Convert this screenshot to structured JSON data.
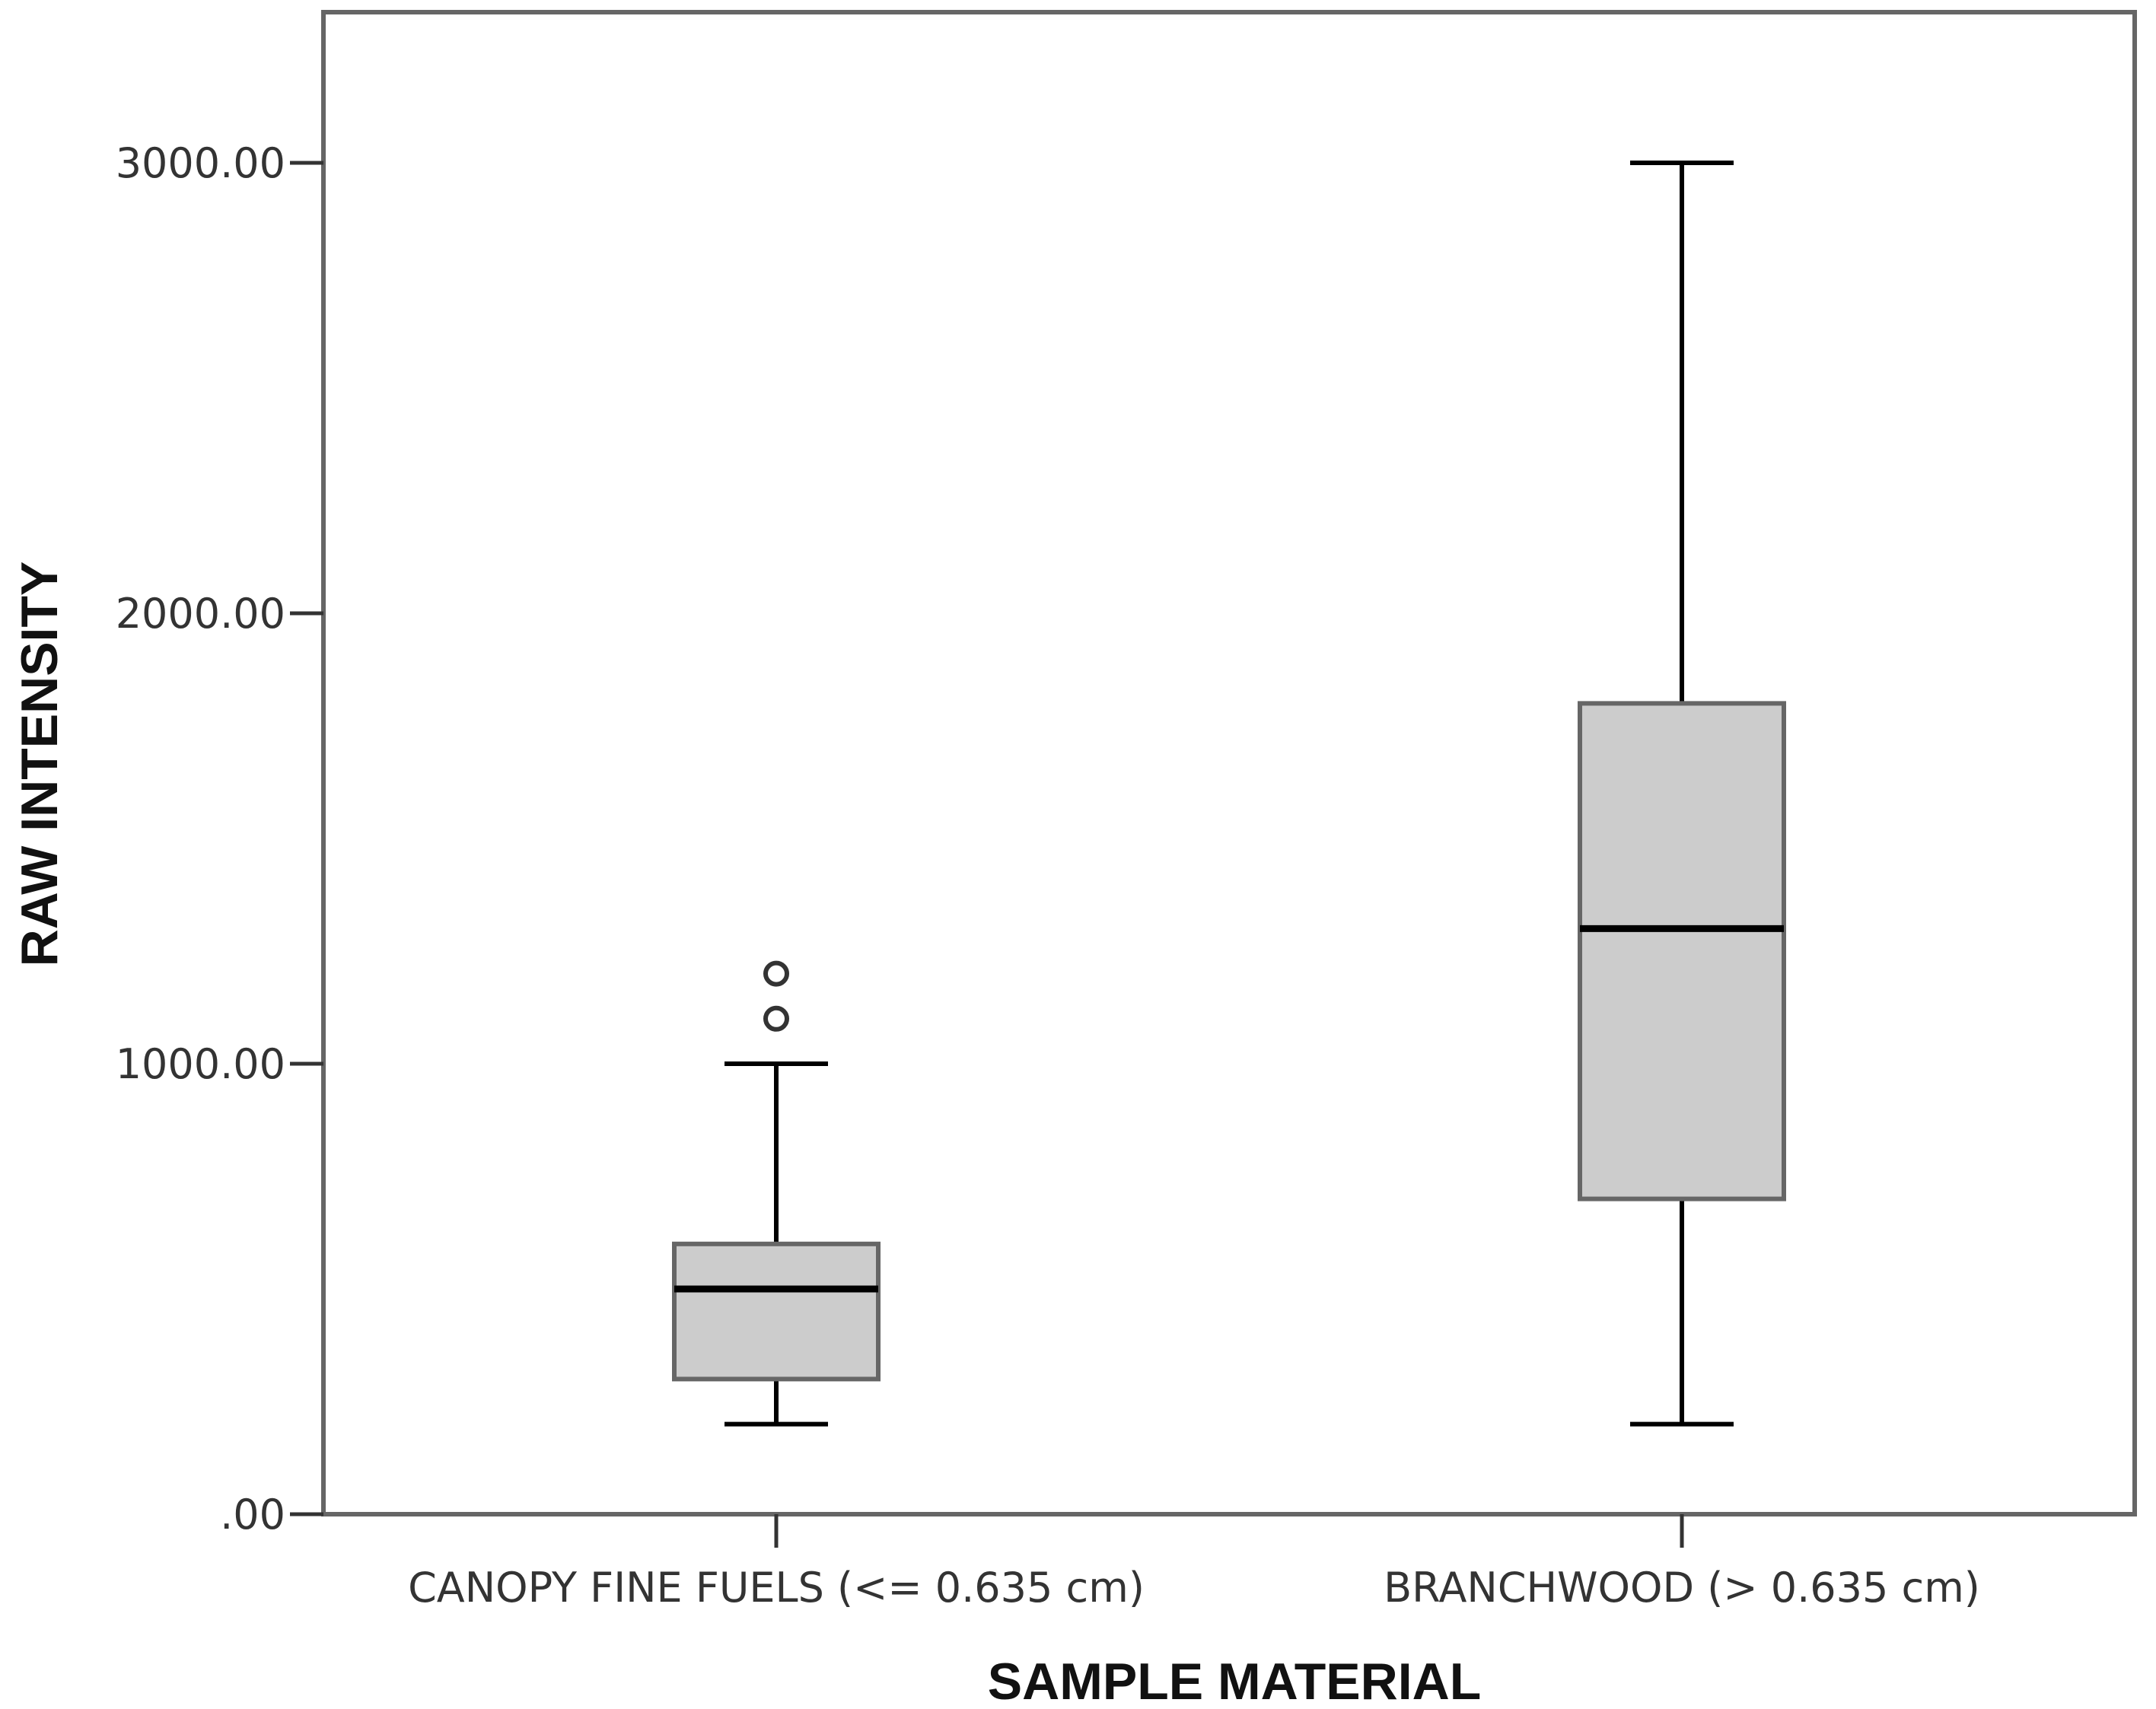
{
  "chart_data": {
    "type": "box",
    "xlabel": "SAMPLE MATERIAL",
    "ylabel": "RAW INTENSITY",
    "ylim": [
      0,
      3300
    ],
    "yticks": [
      0,
      1000,
      2000,
      3000
    ],
    "ytick_labels": [
      ".00",
      "1000.00",
      "2000.00",
      "3000.00"
    ],
    "grid": false,
    "colors": {
      "box_fill": "#cccccc",
      "box_stroke": "#666666",
      "line": "#000000",
      "frame": "#666666"
    },
    "series": [
      {
        "category": "CANOPY FINE FUELS (<= 0.635 cm)",
        "whisker_low": 200,
        "q1": 300,
        "median": 500,
        "q3": 600,
        "whisker_high": 1000,
        "outliers": [
          1100,
          1200
        ]
      },
      {
        "category": "BRANCHWOOD (> 0.635 cm)",
        "whisker_low": 200,
        "q1": 700,
        "median": 1300,
        "q3": 1800,
        "whisker_high": 3000,
        "outliers": []
      }
    ]
  }
}
